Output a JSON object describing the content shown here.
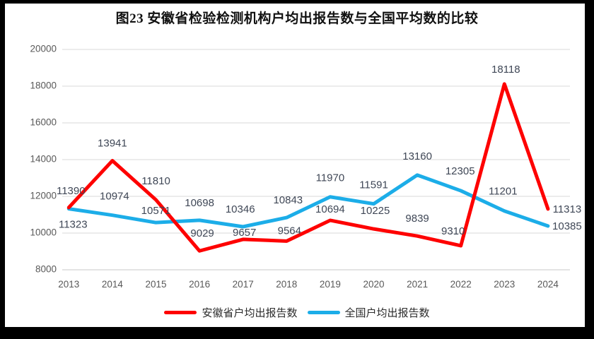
{
  "title": "图23 安徽省检验检测机构户均出报告数与全国平均数的比较",
  "chart_data": {
    "type": "line",
    "categories": [
      "2013",
      "2014",
      "2015",
      "2016",
      "2017",
      "2018",
      "2019",
      "2020",
      "2021",
      "2022",
      "2023",
      "2024"
    ],
    "series": [
      {
        "name": "安徽省户均出报告数",
        "color": "#FE0000",
        "values": [
          11390,
          13941,
          11810,
          9029,
          9657,
          9564,
          10694,
          10225,
          9839,
          9310,
          18118,
          11313
        ],
        "label_offsets": [
          [
            3,
            -23
          ],
          [
            0,
            -24
          ],
          [
            0,
            -26
          ],
          [
            4,
            -24
          ],
          [
            2,
            -9
          ],
          [
            4,
            -14
          ],
          [
            0,
            -15
          ],
          [
            2,
            -25
          ],
          [
            0,
            -24
          ],
          [
            -11,
            -20
          ],
          [
            2,
            -20
          ],
          [
            27,
            1
          ]
        ]
      },
      {
        "name": "全国户均出报告数",
        "color": "#1CADE8",
        "values": [
          11323,
          10974,
          10571,
          10698,
          10346,
          10843,
          11970,
          11591,
          13160,
          12305,
          11201,
          10385
        ],
        "label_offsets": [
          [
            6,
            23
          ],
          [
            3,
            -26
          ],
          [
            0,
            -16
          ],
          [
            0,
            -24
          ],
          [
            -4,
            -24
          ],
          [
            2,
            -24
          ],
          [
            0,
            -26
          ],
          [
            0,
            -26
          ],
          [
            0,
            -26
          ],
          [
            -1,
            -27
          ],
          [
            -2,
            -27
          ],
          [
            27,
            1
          ]
        ]
      }
    ],
    "y_ticks": [
      8000,
      10000,
      12000,
      14000,
      16000,
      18000,
      20000
    ],
    "ylim": [
      8000,
      20000
    ],
    "grid": true,
    "legend_position": "bottom",
    "colors": {
      "grid": "#D9D9D9",
      "axis_line": "#C9C9C9",
      "axis_text": "#595959",
      "data_label_text": "#3F4756"
    }
  }
}
